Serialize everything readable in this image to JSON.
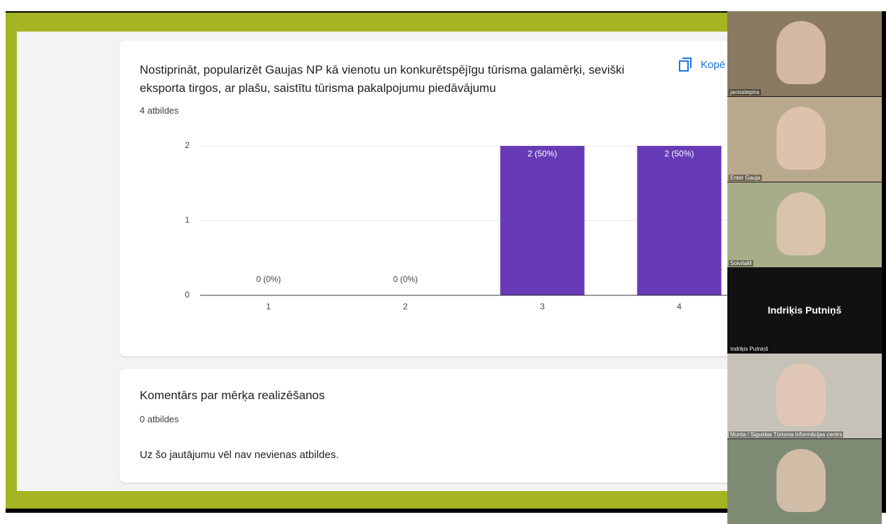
{
  "form": {
    "question1": {
      "title": "Nostiprināt, popularizēt Gaujas NP kā vienotu un konkurētspējīgu tūrisma galamērķi, seviški eksporta tirgos, ar plašu, saistītu tūrisma pakalpojumu piedāvājumu",
      "responses": "4 atbildes",
      "copy_button": "Kopē"
    },
    "question2": {
      "title": "Komentārs par mērķa realizēšanos",
      "responses": "0 atbildes",
      "empty_message": "Uz šo jautājumu vēl nav nevienas atbildes."
    }
  },
  "chart_data": {
    "type": "bar",
    "categories": [
      "1",
      "2",
      "3",
      "4"
    ],
    "values": [
      0,
      0,
      2,
      2
    ],
    "value_labels": [
      "0 (0%)",
      "0 (0%)",
      "2 (50%)",
      "2 (50%)"
    ],
    "color": "#673ab7",
    "ylim": [
      0,
      2
    ],
    "yticks": [
      0,
      1,
      2
    ],
    "grid": true
  },
  "video": {
    "participants": [
      {
        "label": "janisstepins"
      },
      {
        "label": "Enter Gauja"
      },
      {
        "label": "SolvitaM"
      },
      {
        "name": "Indriķis Putniņš",
        "label": "Indriķis Putniņš"
      },
      {
        "label": "Monta / Siguldas Tūrisma informācijas centrs"
      },
      {}
    ]
  }
}
